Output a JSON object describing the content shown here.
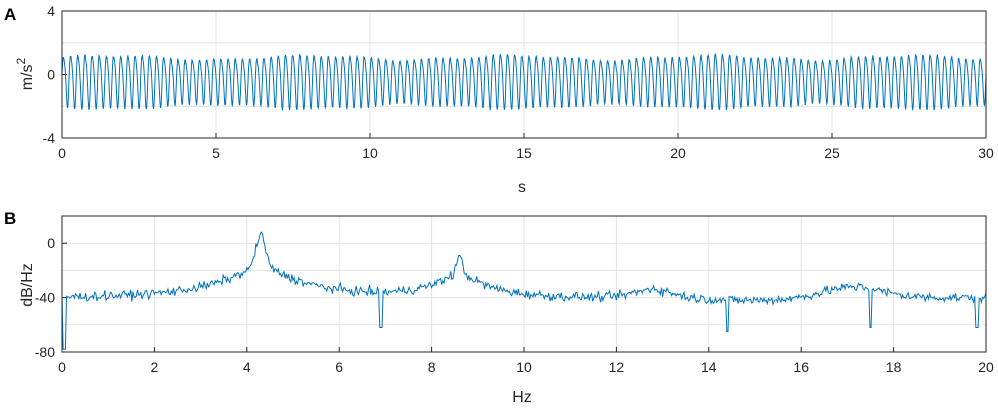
{
  "chart_data": [
    {
      "type": "line",
      "panel_label": "A",
      "xlabel": "s",
      "ylabel_base": "m/s",
      "ylabel_sup": "2",
      "xlim": [
        0,
        30
      ],
      "ylim": [
        -4,
        4
      ],
      "xticks": [
        0,
        5,
        10,
        15,
        20,
        25,
        30
      ],
      "yticks": [
        -4,
        0,
        4
      ],
      "grid": true,
      "color": "#0072BD",
      "signal": {
        "description_free": true,
        "dominant_frequency_hz": 4.3,
        "harmonic_frequency_hz": 8.6,
        "offset": -0.3,
        "amplitude": 1.5,
        "min_approx": -2.1,
        "max_approx": 1.5,
        "sample_rate_hz": 100
      }
    },
    {
      "type": "line",
      "panel_label": "B",
      "xlabel": "Hz",
      "ylabel": "dB/Hz",
      "xlim": [
        0,
        20
      ],
      "ylim": [
        -80,
        20
      ],
      "xticks": [
        0,
        2,
        4,
        6,
        8,
        10,
        12,
        14,
        16,
        18,
        20
      ],
      "yticks": [
        -80,
        -40,
        0
      ],
      "grid": true,
      "color": "#0072BD",
      "spectrum": {
        "base_level_db": -40,
        "peaks": [
          {
            "x": 4.3,
            "y": 8
          },
          {
            "x": 8.6,
            "y": -8
          },
          {
            "x": 12.8,
            "y": -30
          },
          {
            "x": 17.3,
            "y": -28
          }
        ],
        "dips": [
          {
            "x": 0.05,
            "y": -78
          },
          {
            "x": 6.9,
            "y": -62
          },
          {
            "x": 14.4,
            "y": -65
          },
          {
            "x": 17.5,
            "y": -62
          },
          {
            "x": 19.8,
            "y": -62
          }
        ],
        "n_points": 820
      }
    }
  ]
}
